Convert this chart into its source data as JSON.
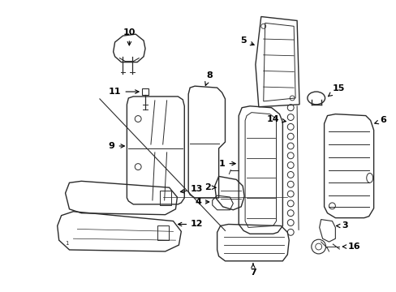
{
  "bg_color": "#ffffff",
  "line_color": "#2a2a2a",
  "label_color": "#000000",
  "figsize": [
    4.89,
    3.6
  ],
  "dpi": 100,
  "label_fs": 8.0
}
